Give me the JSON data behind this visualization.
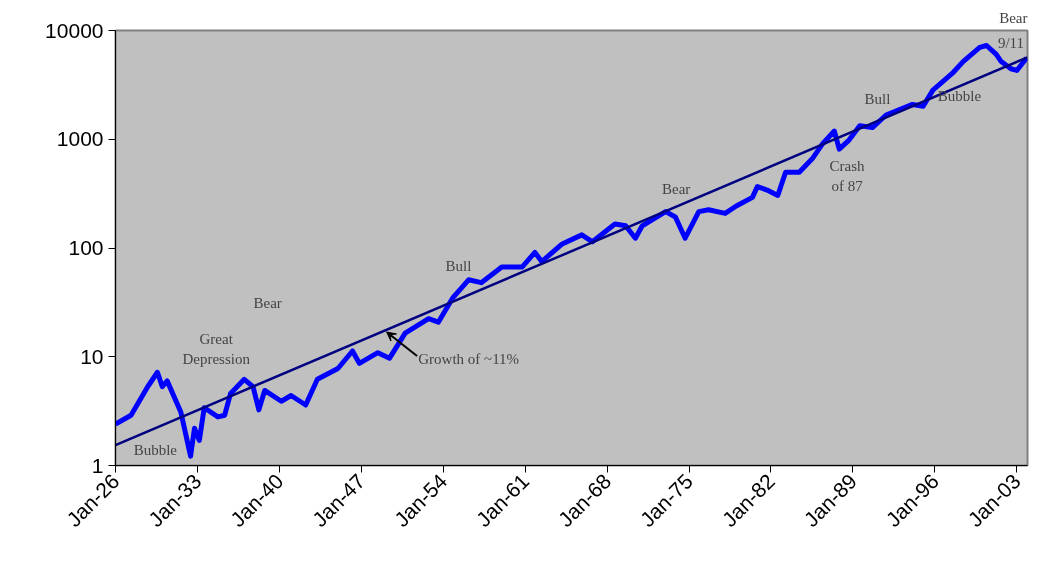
{
  "chart_data": {
    "type": "line",
    "log": "y",
    "grid": false,
    "marker": "none",
    "xlim": [
      "1926-01",
      "2003-12"
    ],
    "ylim": [
      1,
      10000
    ],
    "xticks": [
      {
        "value": "1926-01",
        "label": "Jan-26"
      },
      {
        "value": "1933-01",
        "label": "Jan-33"
      },
      {
        "value": "1940-01",
        "label": "Jan-40"
      },
      {
        "value": "1947-01",
        "label": "Jan-47"
      },
      {
        "value": "1954-01",
        "label": "Jan-54"
      },
      {
        "value": "1961-01",
        "label": "Jan-61"
      },
      {
        "value": "1968-01",
        "label": "Jan-68"
      },
      {
        "value": "1975-01",
        "label": "Jan-75"
      },
      {
        "value": "1982-01",
        "label": "Jan-82"
      },
      {
        "value": "1989-01",
        "label": "Jan-89"
      },
      {
        "value": "1996-01",
        "label": "Jan-96"
      },
      {
        "value": "2003-01",
        "label": "Jan-03"
      }
    ],
    "yticks": [
      1,
      10,
      100,
      1000,
      10000
    ],
    "series": [
      {
        "color": "#0000ff",
        "line_style": "solid",
        "x": [
          "1926-01",
          "1927-05",
          "1928-10",
          "1929-08",
          "1930-01",
          "1930-06",
          "1931-08",
          "1932-06",
          "1932-10",
          "1933-03",
          "1933-08",
          "1934-10",
          "1935-05",
          "1935-11",
          "1937-01",
          "1937-10",
          "1938-04",
          "1938-10",
          "1940-03",
          "1941-01",
          "1942-04",
          "1943-04",
          "1945-01",
          "1946-04",
          "1946-11",
          "1948-06",
          "1949-06",
          "1950-10",
          "1952-10",
          "1953-08",
          "1954-11",
          "1956-03",
          "1957-04",
          "1959-01",
          "1960-10",
          "1961-11",
          "1962-06",
          "1964-03",
          "1965-11",
          "1966-10",
          "1968-09",
          "1969-08",
          "1970-06",
          "1971-01",
          "1973-01",
          "1973-11",
          "1974-09",
          "1975-11",
          "1976-09",
          "1978-02",
          "1979-01",
          "1980-06",
          "1980-11",
          "1981-09",
          "1982-08",
          "1983-04",
          "1984-06",
          "1985-08",
          "1986-06",
          "1987-06",
          "1987-11",
          "1988-09",
          "1989-08",
          "1990-09",
          "1991-11",
          "1994-02",
          "1995-01",
          "1995-11",
          "1997-08",
          "1998-06",
          "1999-11",
          "2000-06",
          "2001-04",
          "2001-09",
          "2002-07",
          "2003-01",
          "2003-11"
        ],
        "values": [
          2.4,
          2.9,
          5.3,
          7.2,
          5.3,
          6.0,
          3.1,
          1.22,
          2.2,
          1.7,
          3.4,
          2.8,
          2.9,
          4.6,
          6.2,
          5.3,
          3.25,
          4.9,
          3.9,
          4.4,
          3.6,
          6.2,
          7.8,
          11.3,
          8.7,
          10.9,
          9.7,
          16.5,
          22.4,
          20.8,
          35,
          51,
          48,
          67,
          67,
          91,
          75,
          109,
          132,
          114,
          166,
          160,
          123,
          160,
          216,
          193,
          123,
          216,
          225,
          208,
          242,
          292,
          367,
          341,
          304,
          497,
          497,
          673,
          910,
          1190,
          812,
          982,
          1330,
          1280,
          1670,
          2090,
          2010,
          2830,
          4130,
          5180,
          7000,
          7280,
          6030,
          5180,
          4450,
          4290,
          5580
        ]
      },
      {
        "color": "#000080",
        "line_style": "solid",
        "x": [
          "1926-01",
          "2003-12"
        ],
        "values": [
          1.54,
          5670
        ]
      }
    ],
    "annotations": [
      "Bubble",
      "Great\nDepression",
      "Bear",
      {
        "text": "Growth of ~11%",
        "x": "1949-03",
        "y": 17.8
      },
      "Bull",
      "Bear",
      "Crash\nof 87",
      "Bull",
      "Bubble",
      "9/11",
      "Bear"
    ]
  }
}
